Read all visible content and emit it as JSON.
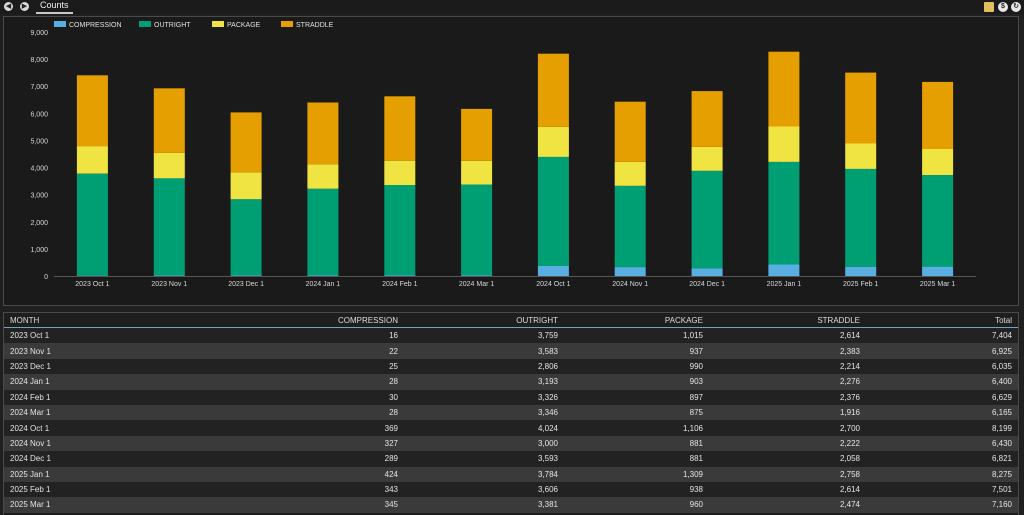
{
  "tab": {
    "label": "Counts"
  },
  "icons": {
    "prev": "prev-icon",
    "next": "next-icon",
    "doc": "document-icon",
    "dollar": "dollar-icon",
    "settings": "settings-icon"
  },
  "colors": {
    "compression": "#5aafe2",
    "outright": "#009e73",
    "package": "#f0e442",
    "straddle": "#e69f00"
  },
  "chart_data": {
    "type": "bar",
    "stacked": true,
    "categories": [
      "2023 Oct 1",
      "2023 Nov 1",
      "2023 Dec 1",
      "2024 Jan 1",
      "2024 Feb 1",
      "2024 Mar 1",
      "2024 Oct 1",
      "2024 Nov 1",
      "2024 Dec 1",
      "2025 Jan 1",
      "2025 Feb 1",
      "2025 Mar 1"
    ],
    "series": [
      {
        "name": "COMPRESSION",
        "color": "#5aafe2",
        "values": [
          16,
          22,
          25,
          28,
          30,
          28,
          369,
          327,
          289,
          424,
          343,
          345
        ]
      },
      {
        "name": "OUTRIGHT",
        "color": "#009e73",
        "values": [
          3759,
          3583,
          2806,
          3193,
          3326,
          3346,
          4024,
          3000,
          3593,
          3784,
          3606,
          3381
        ]
      },
      {
        "name": "PACKAGE",
        "color": "#f0e442",
        "values": [
          1015,
          937,
          990,
          903,
          897,
          875,
          1106,
          881,
          881,
          1309,
          938,
          960
        ]
      },
      {
        "name": "STRADDLE",
        "color": "#e69f00",
        "values": [
          2614,
          2383,
          2214,
          2276,
          2376,
          1916,
          2700,
          2222,
          2058,
          2758,
          2614,
          2474
        ]
      }
    ],
    "ylim": [
      0,
      9000
    ],
    "yticks": [
      "0",
      "1,000",
      "2,000",
      "3,000",
      "4,000",
      "5,000",
      "6,000",
      "7,000",
      "8,000",
      "9,000"
    ],
    "legend_position": "top-left",
    "grid": false
  },
  "table": {
    "headers": [
      "MONTH",
      "COMPRESSION",
      "OUTRIGHT",
      "PACKAGE",
      "STRADDLE",
      "Total"
    ],
    "rows": [
      [
        "2023 Oct 1",
        "16",
        "3,759",
        "1,015",
        "2,614",
        "7,404"
      ],
      [
        "2023 Nov 1",
        "22",
        "3,583",
        "937",
        "2,383",
        "6,925"
      ],
      [
        "2023 Dec 1",
        "25",
        "2,806",
        "990",
        "2,214",
        "6,035"
      ],
      [
        "2024 Jan 1",
        "28",
        "3,193",
        "903",
        "2,276",
        "6,400"
      ],
      [
        "2024 Feb 1",
        "30",
        "3,326",
        "897",
        "2,376",
        "6,629"
      ],
      [
        "2024 Mar 1",
        "28",
        "3,346",
        "875",
        "1,916",
        "6,165"
      ],
      [
        "2024 Oct 1",
        "369",
        "4,024",
        "1,106",
        "2,700",
        "8,199"
      ],
      [
        "2024 Nov 1",
        "327",
        "3,000",
        "881",
        "2,222",
        "6,430"
      ],
      [
        "2024 Dec 1",
        "289",
        "3,593",
        "881",
        "2,058",
        "6,821"
      ],
      [
        "2025 Jan 1",
        "424",
        "3,784",
        "1,309",
        "2,758",
        "8,275"
      ],
      [
        "2025 Feb 1",
        "343",
        "3,606",
        "938",
        "2,614",
        "7,501"
      ],
      [
        "2025 Mar 1",
        "345",
        "3,381",
        "960",
        "2,474",
        "7,160"
      ]
    ]
  }
}
